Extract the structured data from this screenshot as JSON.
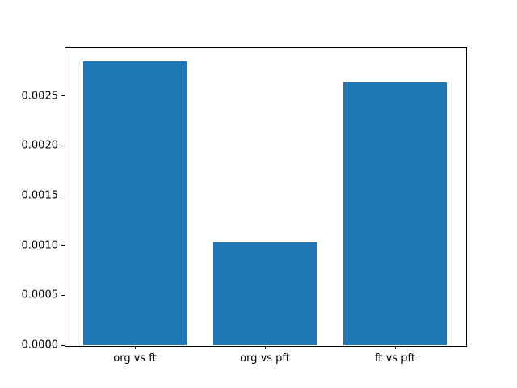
{
  "figure": {
    "background_color": "#ffffff",
    "bar_color": "#1f77b4",
    "spine_color": "#000000",
    "title": ""
  },
  "chart_data": {
    "type": "bar",
    "categories": [
      "org vs ft",
      "org vs pft",
      "ft vs pft"
    ],
    "values": [
      0.00285,
      0.00103,
      0.00264
    ],
    "title": "",
    "xlabel": "",
    "ylabel": "",
    "ylim": [
      0,
      0.0029925
    ],
    "yticks": [
      0.0,
      0.0005,
      0.001,
      0.0015,
      0.002,
      0.0025
    ],
    "ytick_labels": [
      "0.0000",
      "0.0005",
      "0.0010",
      "0.0015",
      "0.0020",
      "0.0025"
    ],
    "bar_width_fraction": 0.8,
    "grid": false,
    "legend": null
  }
}
